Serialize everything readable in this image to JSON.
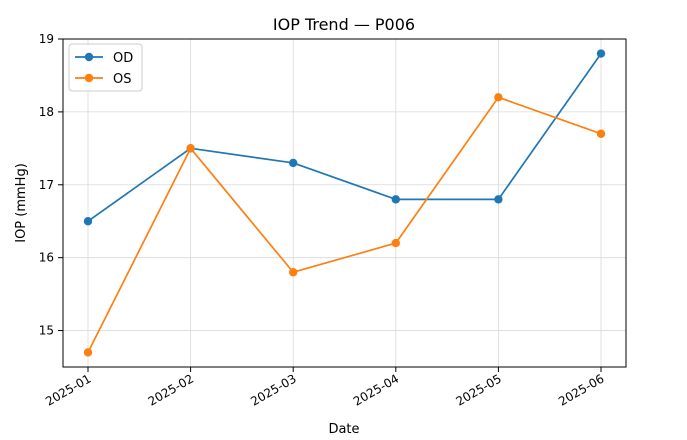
{
  "chart_data": {
    "type": "line",
    "title": "IOP Trend — P006",
    "xlabel": "Date",
    "ylabel": "IOP (mmHg)",
    "categories": [
      "2025-01",
      "2025-02",
      "2025-03",
      "2025-04",
      "2025-05",
      "2025-06"
    ],
    "x": [
      "2025-01-01",
      "2025-02-01",
      "2025-03-01",
      "2025-04-01",
      "2025-05-01",
      "2025-06-01"
    ],
    "ylim": [
      14.5,
      19.0
    ],
    "yticks": [
      15,
      16,
      17,
      18,
      19
    ],
    "grid": true,
    "legend_position": "top-left",
    "series": [
      {
        "name": "OD",
        "color": "#1f77b4",
        "marker": "circle",
        "values": [
          16.5,
          17.5,
          17.3,
          16.8,
          16.8,
          18.8
        ]
      },
      {
        "name": "OS",
        "color": "#ff7f0e",
        "marker": "circle",
        "values": [
          14.7,
          17.5,
          15.8,
          16.2,
          18.2,
          17.7
        ]
      }
    ]
  }
}
